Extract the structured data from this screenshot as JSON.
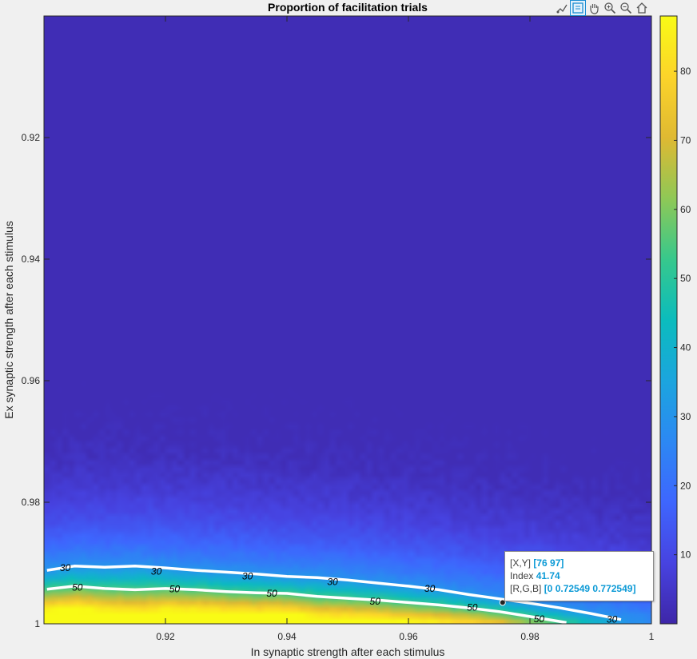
{
  "toolbar": {
    "items": [
      {
        "name": "brush-icon"
      },
      {
        "name": "data-tip-icon"
      },
      {
        "name": "pan-hand-icon"
      },
      {
        "name": "zoom-in-icon"
      },
      {
        "name": "zoom-out-icon"
      },
      {
        "name": "home-icon"
      }
    ]
  },
  "datatip": {
    "xy_label": "[X,Y]",
    "xy_value": "[76 97]",
    "index_label": "Index",
    "index_value": "41.74",
    "rgb_label": "[R,G,B]",
    "rgb_value": "[0 0.72549 0.772549]"
  },
  "chart_data": {
    "type": "heatmap",
    "title": "Proportion of facilitation trials",
    "xlabel": "In synaptic strength after each stimulus",
    "ylabel": "Ex synaptic strength after each stimulus",
    "xlim": [
      0.9,
      1.0
    ],
    "ylim": [
      0.9,
      1.0
    ],
    "y_direction": "reverse",
    "x_ticks": [
      0.92,
      0.94,
      0.96,
      0.98,
      1
    ],
    "x_tick_labels": [
      "0.92",
      "0.94",
      "0.96",
      "0.98",
      "1"
    ],
    "y_ticks": [
      0.92,
      0.94,
      0.96,
      0.98,
      1
    ],
    "y_tick_labels": [
      "0.92",
      "0.94",
      "0.96",
      "0.98",
      "1"
    ],
    "colormap": "parula",
    "colorbar": {
      "range": [
        0,
        88
      ],
      "ticks": [
        10,
        20,
        30,
        40,
        50,
        60,
        70,
        80
      ],
      "tick_labels": [
        "10",
        "20",
        "30",
        "40",
        "50",
        "60",
        "70",
        "80"
      ],
      "colors": [
        "#3e26a8",
        "#4743e1",
        "#3e66fe",
        "#2c88f3",
        "#1ba5de",
        "#0bbcbd",
        "#37c88c",
        "#8fc856",
        "#dfb932",
        "#fcd42a",
        "#f9fb15"
      ]
    },
    "contours": [
      {
        "level": 30,
        "points": [
          [
            0.9005,
            0.9912
          ],
          [
            0.905,
            0.9905
          ],
          [
            0.91,
            0.9907
          ],
          [
            0.915,
            0.9905
          ],
          [
            0.92,
            0.9908
          ],
          [
            0.925,
            0.9912
          ],
          [
            0.93,
            0.9915
          ],
          [
            0.935,
            0.9918
          ],
          [
            0.94,
            0.9922
          ],
          [
            0.945,
            0.9924
          ],
          [
            0.95,
            0.9928
          ],
          [
            0.955,
            0.9933
          ],
          [
            0.96,
            0.9938
          ],
          [
            0.965,
            0.9944
          ],
          [
            0.97,
            0.9952
          ],
          [
            0.975,
            0.9959
          ],
          [
            0.98,
            0.9966
          ],
          [
            0.985,
            0.9974
          ],
          [
            0.99,
            0.9983
          ],
          [
            0.995,
            0.9993
          ]
        ],
        "labels": [
          [
            0.9035,
            0.9908
          ],
          [
            0.9185,
            0.9914
          ],
          [
            0.9335,
            0.9922
          ],
          [
            0.9475,
            0.9931
          ],
          [
            0.9635,
            0.9942
          ],
          [
            0.9935,
            0.9993
          ]
        ]
      },
      {
        "level": 50,
        "points": [
          [
            0.9005,
            0.9943
          ],
          [
            0.905,
            0.9938
          ],
          [
            0.91,
            0.9942
          ],
          [
            0.915,
            0.9944
          ],
          [
            0.92,
            0.9942
          ],
          [
            0.925,
            0.9944
          ],
          [
            0.93,
            0.9947
          ],
          [
            0.935,
            0.9949
          ],
          [
            0.94,
            0.995
          ],
          [
            0.945,
            0.9955
          ],
          [
            0.95,
            0.9958
          ],
          [
            0.955,
            0.9961
          ],
          [
            0.96,
            0.9965
          ],
          [
            0.965,
            0.9969
          ],
          [
            0.97,
            0.9974
          ],
          [
            0.975,
            0.998
          ],
          [
            0.98,
            0.9988
          ],
          [
            0.986,
            0.9998
          ]
        ],
        "labels": [
          [
            0.9055,
            0.994
          ],
          [
            0.9215,
            0.9943
          ],
          [
            0.9375,
            0.995
          ],
          [
            0.9545,
            0.9963
          ],
          [
            0.9705,
            0.9973
          ],
          [
            0.9815,
            0.9992
          ]
        ]
      }
    ],
    "datatip": {
      "x": 76,
      "y": 97,
      "index": 41.74
    }
  }
}
